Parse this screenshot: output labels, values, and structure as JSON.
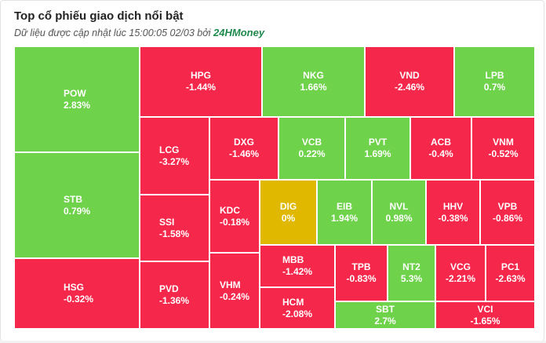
{
  "header": {
    "title": "Top cổ phiếu giao dịch nổi bật",
    "subtitle_prefix": "Dữ liệu được cập nhật lúc 15:00:05 02/03 bởi ",
    "brand": "24HMoney"
  },
  "colors": {
    "up": "#6fd24b",
    "down": "#f5284b",
    "flat": "#e0b800"
  },
  "tiles": [
    {
      "symbol": "POW",
      "change": "2.83%"
    },
    {
      "symbol": "STB",
      "change": "0.79%"
    },
    {
      "symbol": "HSG",
      "change": "-0.32%"
    },
    {
      "symbol": "HPG",
      "change": "-1.44%"
    },
    {
      "symbol": "NKG",
      "change": "1.66%"
    },
    {
      "symbol": "VND",
      "change": "-2.46%"
    },
    {
      "symbol": "LPB",
      "change": "0.7%"
    },
    {
      "symbol": "LCG",
      "change": "-3.27%"
    },
    {
      "symbol": "DXG",
      "change": "-1.46%"
    },
    {
      "symbol": "VCB",
      "change": "0.22%"
    },
    {
      "symbol": "PVT",
      "change": "1.69%"
    },
    {
      "symbol": "ACB",
      "change": "-0.4%"
    },
    {
      "symbol": "VNM",
      "change": "-0.52%"
    },
    {
      "symbol": "SSI",
      "change": "-1.58%"
    },
    {
      "symbol": "KDC",
      "change": "-0.18%"
    },
    {
      "symbol": "DIG",
      "change": "0%"
    },
    {
      "symbol": "EIB",
      "change": "1.94%"
    },
    {
      "symbol": "NVL",
      "change": "0.98%"
    },
    {
      "symbol": "HHV",
      "change": "-0.38%"
    },
    {
      "symbol": "VPB",
      "change": "-0.86%"
    },
    {
      "symbol": "PVD",
      "change": "-1.36%"
    },
    {
      "symbol": "VHM",
      "change": "-0.24%"
    },
    {
      "symbol": "MBB",
      "change": "-1.42%"
    },
    {
      "symbol": "HCM",
      "change": "-2.08%"
    },
    {
      "symbol": "TPB",
      "change": "-0.83%"
    },
    {
      "symbol": "NT2",
      "change": "5.3%"
    },
    {
      "symbol": "VCG",
      "change": "-2.21%"
    },
    {
      "symbol": "PC1",
      "change": "-2.63%"
    },
    {
      "symbol": "SBT",
      "change": "2.7%"
    },
    {
      "symbol": "VCI",
      "change": "-1.65%"
    }
  ]
}
